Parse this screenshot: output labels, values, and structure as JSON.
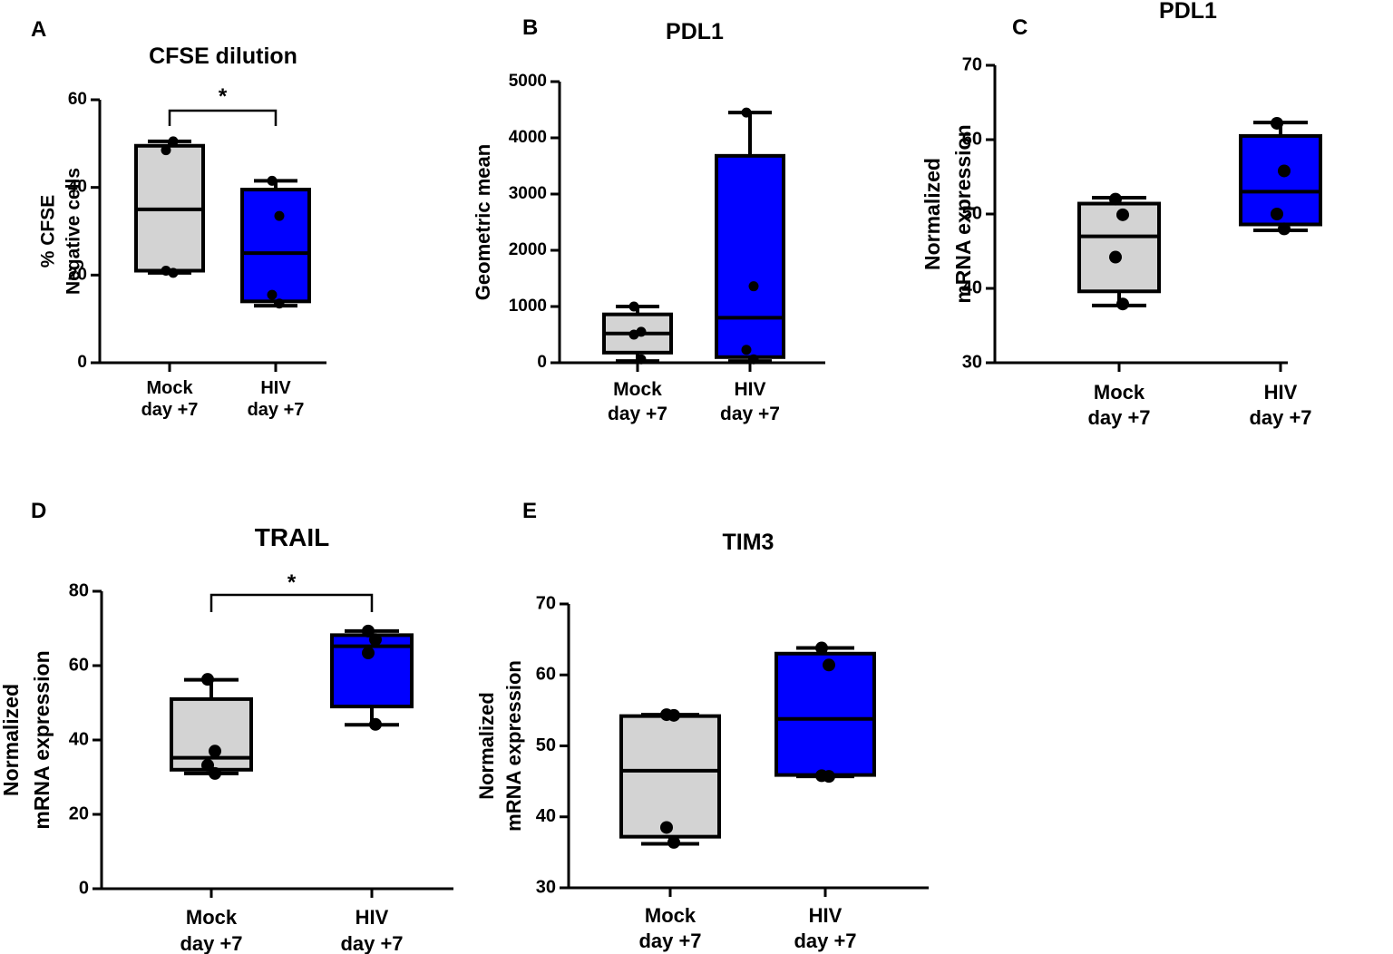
{
  "figure_colors": {
    "mock": "#d3d3d3",
    "hiv": "#0000ff",
    "stroke": "#000000"
  },
  "chart_data": [
    {
      "panel": "A",
      "type": "box",
      "title": "CFSE dilution",
      "ylabel_lines": [
        "% CFSE",
        "Negative cells"
      ],
      "ylim": [
        0,
        60
      ],
      "yticks": [
        0,
        20,
        40,
        60
      ],
      "groups": [
        {
          "label_lines": [
            "Mock",
            "day +7"
          ],
          "color_key": "mock",
          "min": 20.5,
          "q1": 21,
          "median": 35,
          "q3": 49.5,
          "max": 50.5,
          "points": [
            48.5,
            50.5,
            21,
            20.5
          ]
        },
        {
          "label_lines": [
            "HIV",
            "day +7"
          ],
          "color_key": "hiv",
          "min": 13,
          "q1": 14,
          "median": 25,
          "q3": 39.5,
          "max": 41.5,
          "points": [
            41.5,
            33.5,
            15.5,
            13.5
          ]
        }
      ],
      "significance": {
        "label": "*"
      }
    },
    {
      "panel": "B",
      "type": "box",
      "title": "PDL1",
      "ylabel_lines": [
        "Geometric mean"
      ],
      "ylim": [
        0,
        5000
      ],
      "yticks": [
        0,
        1000,
        2000,
        3000,
        4000,
        5000
      ],
      "groups": [
        {
          "label_lines": [
            "Mock",
            "day +7"
          ],
          "color_key": "mock",
          "min": 30,
          "q1": 180,
          "median": 520,
          "q3": 860,
          "max": 1000,
          "points": [
            1000,
            550,
            500,
            60
          ]
        },
        {
          "label_lines": [
            "HIV",
            "day +7"
          ],
          "color_key": "hiv",
          "min": 30,
          "q1": 100,
          "median": 800,
          "q3": 3680,
          "max": 4450,
          "points": [
            4450,
            1360,
            230,
            60
          ]
        }
      ]
    },
    {
      "panel": "C",
      "type": "box",
      "title": "PDL1",
      "ylabel_lines": [
        "Normalized",
        "mRNA expression"
      ],
      "ylim": [
        30,
        70
      ],
      "yticks": [
        30,
        40,
        50,
        60,
        70
      ],
      "groups": [
        {
          "label_lines": [
            "Mock",
            "day +7"
          ],
          "color_key": "mock",
          "min": 37.7,
          "q1": 39.6,
          "median": 47,
          "q3": 51.4,
          "max": 52.2,
          "points": [
            52,
            49.9,
            44.2,
            37.9
          ]
        },
        {
          "label_lines": [
            "HIV",
            "day +7"
          ],
          "color_key": "hiv",
          "min": 47.8,
          "q1": 48.6,
          "median": 53,
          "q3": 60.5,
          "max": 62.3,
          "points": [
            62.2,
            55.8,
            50,
            48
          ]
        }
      ]
    },
    {
      "panel": "D",
      "type": "box",
      "title": "TRAIL",
      "ylabel_lines": [
        "Normalized",
        "mRNA expression"
      ],
      "ylim": [
        0,
        80
      ],
      "yticks": [
        0,
        20,
        40,
        60,
        80
      ],
      "groups": [
        {
          "label_lines": [
            "Mock",
            "day +7"
          ],
          "color_key": "mock",
          "min": 31,
          "q1": 32,
          "median": 35.2,
          "q3": 51,
          "max": 56.2,
          "points": [
            56.3,
            37,
            33.2,
            31
          ]
        },
        {
          "label_lines": [
            "HIV",
            "day +7"
          ],
          "color_key": "hiv",
          "min": 44.1,
          "q1": 49,
          "median": 65.2,
          "q3": 68.2,
          "max": 69.3,
          "points": [
            69.3,
            67,
            63.4,
            44.2
          ]
        }
      ],
      "significance": {
        "label": "*"
      }
    },
    {
      "panel": "E",
      "type": "box",
      "title": "TIM3",
      "ylabel_lines": [
        "Normalized",
        "mRNA expression"
      ],
      "ylim": [
        30,
        70
      ],
      "yticks": [
        30,
        40,
        50,
        60,
        70
      ],
      "groups": [
        {
          "label_lines": [
            "Mock",
            "day +7"
          ],
          "color_key": "mock",
          "min": 36.2,
          "q1": 37.2,
          "median": 46.5,
          "q3": 54.2,
          "max": 54.4,
          "points": [
            54.4,
            54.3,
            38.5,
            36.4
          ]
        },
        {
          "label_lines": [
            "HIV",
            "day +7"
          ],
          "color_key": "hiv",
          "min": 45.7,
          "q1": 45.9,
          "median": 53.8,
          "q3": 63,
          "max": 63.8,
          "points": [
            63.8,
            61.4,
            45.8,
            45.7
          ]
        }
      ]
    }
  ]
}
